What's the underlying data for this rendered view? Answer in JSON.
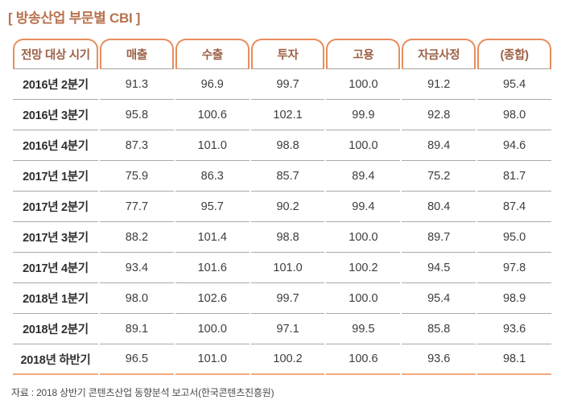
{
  "title": "[ 방송산업 부문별 CBI ]",
  "table": {
    "columns": [
      "전망 대상 시기",
      "매출",
      "수출",
      "투자",
      "고용",
      "자금사정",
      "(종합)"
    ],
    "rows": [
      {
        "period": "2016년 2분기",
        "values": [
          "91.3",
          "96.9",
          "99.7",
          "100.0",
          "91.2",
          "95.4"
        ]
      },
      {
        "period": "2016년 3분기",
        "values": [
          "95.8",
          "100.6",
          "102.1",
          "99.9",
          "92.8",
          "98.0"
        ]
      },
      {
        "period": "2016년 4분기",
        "values": [
          "87.3",
          "101.0",
          "98.8",
          "100.0",
          "89.4",
          "94.6"
        ]
      },
      {
        "period": "2017년 1분기",
        "values": [
          "75.9",
          "86.3",
          "85.7",
          "89.4",
          "75.2",
          "81.7"
        ]
      },
      {
        "period": "2017년 2분기",
        "values": [
          "77.7",
          "95.7",
          "90.2",
          "99.4",
          "80.4",
          "87.4"
        ]
      },
      {
        "period": "2017년 3분기",
        "values": [
          "88.2",
          "101.4",
          "98.8",
          "100.0",
          "89.7",
          "95.0"
        ]
      },
      {
        "period": "2017년 4분기",
        "values": [
          "93.4",
          "101.6",
          "101.0",
          "100.2",
          "94.5",
          "97.8"
        ]
      },
      {
        "period": "2018년 1분기",
        "values": [
          "98.0",
          "102.6",
          "99.7",
          "100.0",
          "95.4",
          "98.9"
        ]
      },
      {
        "period": "2018년 2분기",
        "values": [
          "89.1",
          "100.0",
          "97.1",
          "99.5",
          "85.8",
          "93.6"
        ]
      },
      {
        "period": "2018년 하반기",
        "values": [
          "96.5",
          "101.0",
          "100.2",
          "100.6",
          "93.6",
          "98.1"
        ]
      }
    ]
  },
  "source": "자료 : 2018 상반기 콘텐츠산업 동향분석 보고서(한국콘텐츠진흥원)",
  "colors": {
    "title_text": "#b8734e",
    "header_text": "#9c6045",
    "tab_border": "#e88d5c",
    "row_divider": "#a9a9a9",
    "bottom_line": "#f4a87e",
    "period_text": "#2f2f2f",
    "value_text": "#3d3d3d",
    "source_text": "#4a4a4a"
  }
}
